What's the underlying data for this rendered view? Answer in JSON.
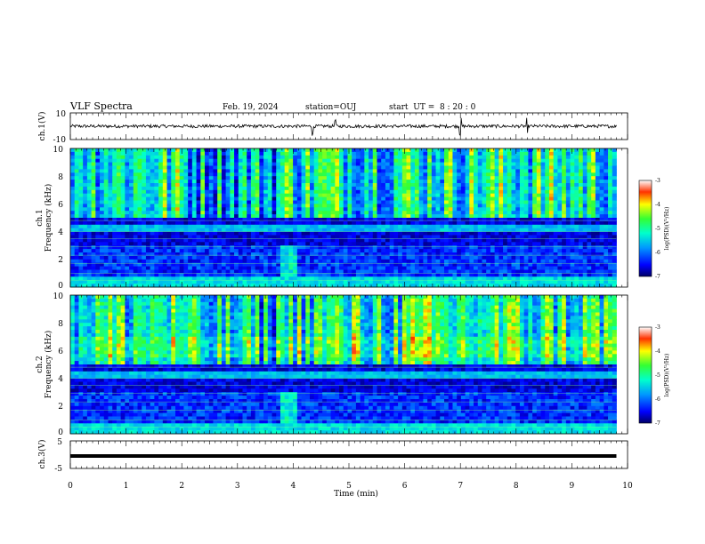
{
  "header": {
    "title": "VLF Spectra",
    "date": "Feb. 19, 2024",
    "station": "station=OUJ",
    "start_ut": "start  UT =  8 : 20 : 0"
  },
  "chart_data": [
    {
      "type": "line",
      "panel": "ch1_waveform",
      "ylabel": "ch.1(V)",
      "ylim": [
        -10,
        10
      ],
      "y_tick_labels": [
        "10",
        "-10"
      ],
      "xlim": [
        0,
        10
      ],
      "series_summary": {
        "baseline": 0,
        "noise_amplitude": 1.2,
        "spikes_at_min": [
          4.35,
          4.75,
          7.0,
          8.2
        ]
      }
    },
    {
      "type": "heatmap",
      "panel": "ch1_spectrogram",
      "ylabel_lines": [
        "ch.1",
        "Frequency (kHz)"
      ],
      "ylim": [
        0,
        10
      ],
      "y_tick_labels": [
        "0",
        "2",
        "4",
        "6",
        "8",
        "10"
      ],
      "xlim": [
        0,
        10
      ],
      "data_end_min": 9.8,
      "colorbar": {
        "label": "log(PSD)(V²/Hz)",
        "range": [
          -7,
          -3
        ],
        "tick_labels": [
          "-3",
          "-4",
          "-5",
          "-6",
          "-7"
        ]
      }
    },
    {
      "type": "heatmap",
      "panel": "ch2_spectrogram",
      "ylabel_lines": [
        "ch.2",
        "Frequency (kHz)"
      ],
      "ylim": [
        0,
        10
      ],
      "y_tick_labels": [
        "0",
        "2",
        "4",
        "6",
        "8",
        "10"
      ],
      "xlim": [
        0,
        10
      ],
      "data_end_min": 9.8,
      "colorbar": {
        "label": "log(PSD)(V²/Hz)",
        "range": [
          -7,
          -3
        ],
        "tick_labels": [
          "-3",
          "-4",
          "-5",
          "-6",
          "-7"
        ]
      }
    },
    {
      "type": "line",
      "panel": "ch3_waveform",
      "ylabel": "ch.3(V)",
      "ylim": [
        -5,
        5
      ],
      "y_tick_labels": [
        "5",
        "-5"
      ],
      "xlim": [
        0,
        10
      ],
      "series_summary": {
        "constant_value": -0.5
      }
    }
  ],
  "x_axis": {
    "label": "Time (min)",
    "tick_labels": [
      "0",
      "1",
      "2",
      "3",
      "4",
      "5",
      "6",
      "7",
      "8",
      "9",
      "10"
    ]
  }
}
